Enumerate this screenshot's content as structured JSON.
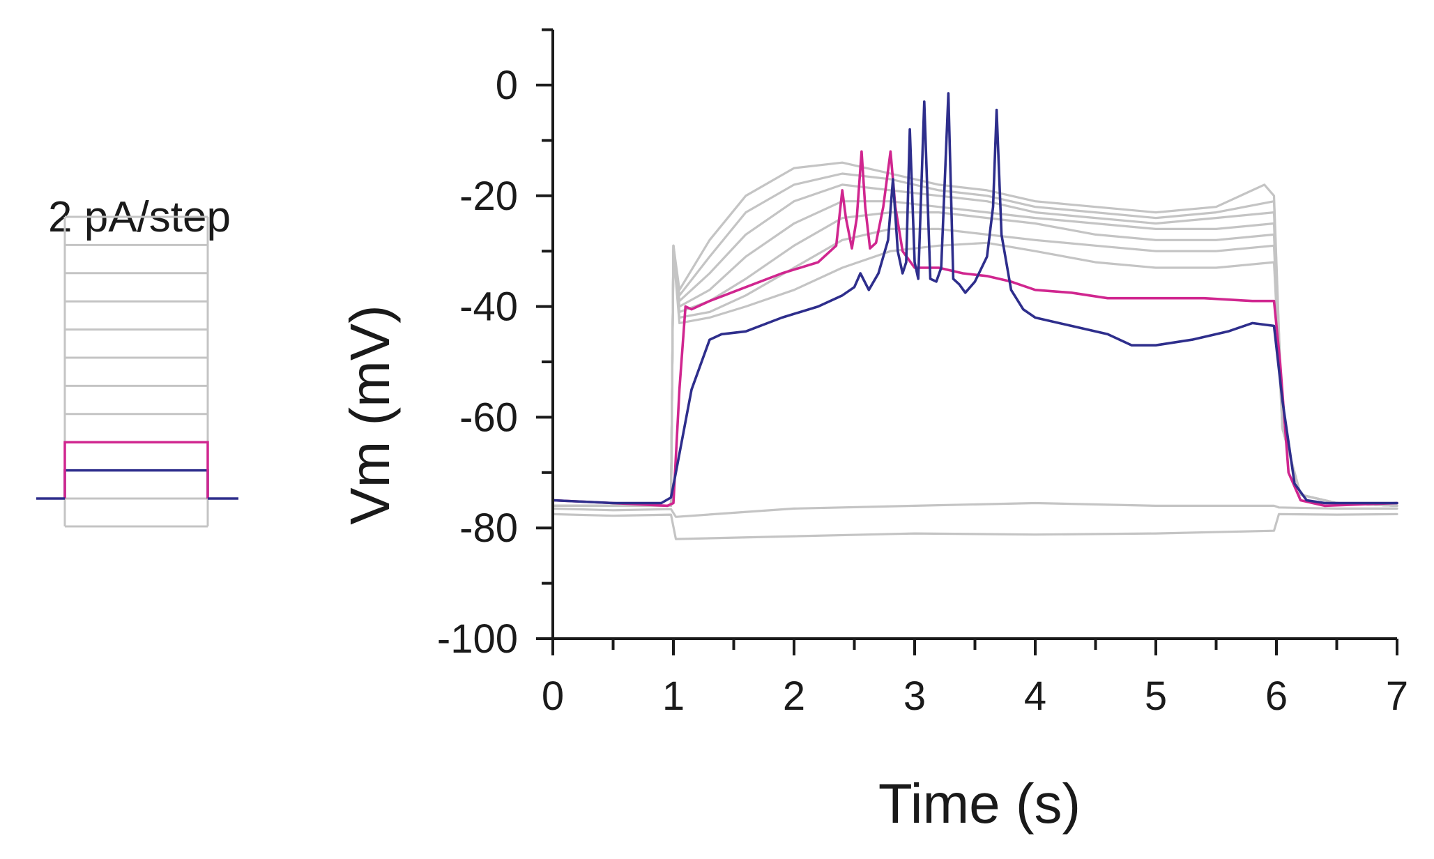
{
  "stimulus_panel": {
    "label": "2 pA/step",
    "n_steps": 10,
    "highlight_steps": [
      {
        "step": 1,
        "color": "#2e2e8c"
      },
      {
        "step": 2,
        "color": "#d0268f"
      }
    ],
    "gray_color": "#c4c4c4"
  },
  "chart_data": {
    "type": "line",
    "xlabel": "Time (s)",
    "ylabel": "Vm (mV)",
    "xlim": [
      0,
      7
    ],
    "ylim": [
      -100,
      10
    ],
    "xticks": [
      0,
      1,
      2,
      3,
      4,
      5,
      6,
      7
    ],
    "yticks": [
      0,
      -20,
      -40,
      -60,
      -80,
      -100
    ],
    "grid": false,
    "legend": "none",
    "colors": {
      "gray": "#c4c4c4",
      "magenta": "#d0268f",
      "navy": "#2e2e8c"
    },
    "series": [
      {
        "color": "gray",
        "x": [
          0,
          0.5,
          0.98,
          1.02,
          2,
          3,
          4,
          5,
          5.98,
          6.02,
          6.5,
          7
        ],
        "y": [
          -77.5,
          -77.8,
          -77.6,
          -82,
          -81.5,
          -81,
          -81.2,
          -81,
          -80.5,
          -77.5,
          -77.6,
          -77.5
        ]
      },
      {
        "color": "gray",
        "x": [
          0,
          0.5,
          0.98,
          1.02,
          2,
          3,
          4,
          5,
          5.98,
          6.02,
          6.5,
          7
        ],
        "y": [
          -76.5,
          -76.8,
          -76.6,
          -78,
          -76.5,
          -76,
          -75.5,
          -76,
          -76,
          -76.3,
          -76.5,
          -76.5
        ]
      },
      {
        "color": "gray",
        "x": [
          0,
          0.98,
          1.0,
          1.05,
          1.3,
          1.6,
          2.0,
          2.4,
          2.8,
          3.2,
          3.6,
          4.0,
          4.5,
          5.0,
          5.5,
          5.98,
          6.05,
          6.2,
          6.5,
          7
        ],
        "y": [
          -76,
          -76,
          -30,
          -43,
          -42,
          -40,
          -37,
          -33,
          -30,
          -29,
          -28.5,
          -30,
          -32,
          -33,
          -33,
          -32,
          -62,
          -74,
          -75.5,
          -76
        ]
      },
      {
        "color": "gray",
        "x": [
          0,
          0.98,
          1.0,
          1.05,
          1.3,
          1.6,
          2.0,
          2.4,
          2.8,
          3.2,
          3.6,
          4.0,
          4.5,
          5.0,
          5.5,
          5.98,
          6.05,
          6.2,
          6.5,
          7
        ],
        "y": [
          -76,
          -76,
          -30,
          -42,
          -41,
          -38,
          -33,
          -28,
          -26,
          -26,
          -27,
          -28,
          -29,
          -30,
          -30,
          -29,
          -62,
          -74,
          -75.5,
          -76
        ]
      },
      {
        "color": "gray",
        "x": [
          0,
          0.98,
          1.0,
          1.05,
          1.3,
          1.6,
          2.0,
          2.4,
          2.8,
          3.2,
          3.6,
          4.0,
          4.5,
          5.0,
          5.5,
          5.98,
          6.05,
          6.2,
          6.5,
          7
        ],
        "y": [
          -76,
          -76,
          -29,
          -41,
          -39,
          -35,
          -29,
          -24,
          -23,
          -23,
          -24,
          -25,
          -27,
          -28,
          -28,
          -27,
          -62,
          -74,
          -75.5,
          -76
        ]
      },
      {
        "color": "gray",
        "x": [
          0,
          0.98,
          1.0,
          1.05,
          1.3,
          1.6,
          2.0,
          2.4,
          2.8,
          3.2,
          3.6,
          4.0,
          4.5,
          5.0,
          5.5,
          5.98,
          6.05,
          6.2,
          6.5,
          7
        ],
        "y": [
          -76,
          -76,
          -29,
          -40,
          -37,
          -31,
          -25,
          -21,
          -21,
          -22,
          -23,
          -24,
          -25,
          -26,
          -26,
          -25,
          -62,
          -74,
          -75.5,
          -76
        ]
      },
      {
        "color": "gray",
        "x": [
          0,
          0.98,
          1.0,
          1.05,
          1.3,
          1.6,
          2.0,
          2.4,
          2.8,
          3.2,
          3.6,
          4.0,
          4.5,
          5.0,
          5.5,
          5.98,
          6.05,
          6.2,
          6.5,
          7
        ],
        "y": [
          -76,
          -76,
          -29,
          -39,
          -34,
          -27,
          -21,
          -18,
          -19,
          -20,
          -21,
          -23,
          -24,
          -25,
          -24,
          -23,
          -62,
          -74,
          -75.5,
          -76
        ]
      },
      {
        "color": "gray",
        "x": [
          0,
          0.98,
          1.0,
          1.05,
          1.3,
          1.6,
          2.0,
          2.4,
          2.8,
          3.2,
          3.6,
          4.0,
          4.5,
          5.0,
          5.5,
          5.98,
          6.05,
          6.2,
          6.5,
          7
        ],
        "y": [
          -76,
          -76,
          -29,
          -38,
          -31,
          -23,
          -18,
          -16,
          -17,
          -19,
          -20,
          -22,
          -23,
          -24,
          -23,
          -21,
          -62,
          -74,
          -75.5,
          -76
        ]
      },
      {
        "color": "gray",
        "x": [
          0,
          0.98,
          1.0,
          1.05,
          1.3,
          1.6,
          2.0,
          2.4,
          2.8,
          3.2,
          3.6,
          4.0,
          4.5,
          5.0,
          5.5,
          5.9,
          5.98,
          6.05,
          6.2,
          6.5,
          7
        ],
        "y": [
          -76,
          -76,
          -29,
          -37,
          -28,
          -20,
          -15,
          -14,
          -16,
          -18,
          -19,
          -21,
          -22,
          -23,
          -22,
          -18,
          -20,
          -62,
          -74,
          -75.5,
          -76
        ]
      },
      {
        "color": "magenta",
        "x": [
          0,
          0.5,
          0.95,
          1.0,
          1.05,
          1.1,
          1.15,
          1.3,
          1.6,
          1.9,
          2.2,
          2.35,
          2.4,
          2.43,
          2.48,
          2.52,
          2.56,
          2.59,
          2.63,
          2.68,
          2.74,
          2.8,
          2.84,
          2.9,
          3.0,
          3.2,
          3.4,
          3.6,
          3.8,
          4.0,
          4.3,
          4.6,
          5.0,
          5.4,
          5.8,
          5.98,
          6.03,
          6.1,
          6.2,
          6.4,
          7
        ],
        "y": [
          -75,
          -75.5,
          -76,
          -75.5,
          -55,
          -40,
          -40.5,
          -39,
          -36.5,
          -34,
          -32,
          -29,
          -19,
          -24,
          -29.5,
          -24,
          -12,
          -22,
          -29.5,
          -28.5,
          -22,
          -12,
          -22,
          -30,
          -33,
          -33,
          -34,
          -34.5,
          -35.5,
          -37,
          -37.5,
          -38.5,
          -38.5,
          -38.5,
          -39,
          -39,
          -50,
          -70,
          -75,
          -76,
          -75.5
        ]
      },
      {
        "color": "navy",
        "x": [
          0,
          0.5,
          0.9,
          0.98,
          1.02,
          1.15,
          1.3,
          1.4,
          1.6,
          1.9,
          2.2,
          2.4,
          2.5,
          2.55,
          2.62,
          2.7,
          2.78,
          2.82,
          2.86,
          2.9,
          2.93,
          2.96,
          3.0,
          3.03,
          3.08,
          3.13,
          3.18,
          3.22,
          3.28,
          3.32,
          3.37,
          3.42,
          3.5,
          3.6,
          3.65,
          3.68,
          3.72,
          3.8,
          3.9,
          4.0,
          4.3,
          4.6,
          4.8,
          5.0,
          5.3,
          5.6,
          5.8,
          5.98,
          6.05,
          6.15,
          6.25,
          6.4,
          7
        ],
        "y": [
          -75,
          -75.5,
          -75.5,
          -74.5,
          -70,
          -55,
          -46,
          -45,
          -44.5,
          -42,
          -40,
          -38,
          -36.5,
          -34,
          -37,
          -34,
          -28,
          -17,
          -30,
          -34,
          -32,
          -8,
          -32,
          -35,
          -3,
          -35,
          -35.5,
          -33,
          -1.5,
          -35,
          -36,
          -37.5,
          -35.5,
          -31,
          -22,
          -4.5,
          -27,
          -37,
          -40.5,
          -42,
          -43.5,
          -45,
          -47,
          -47,
          -46,
          -44.5,
          -43,
          -43.5,
          -57,
          -72,
          -75,
          -75.5,
          -75.5
        ]
      }
    ]
  }
}
